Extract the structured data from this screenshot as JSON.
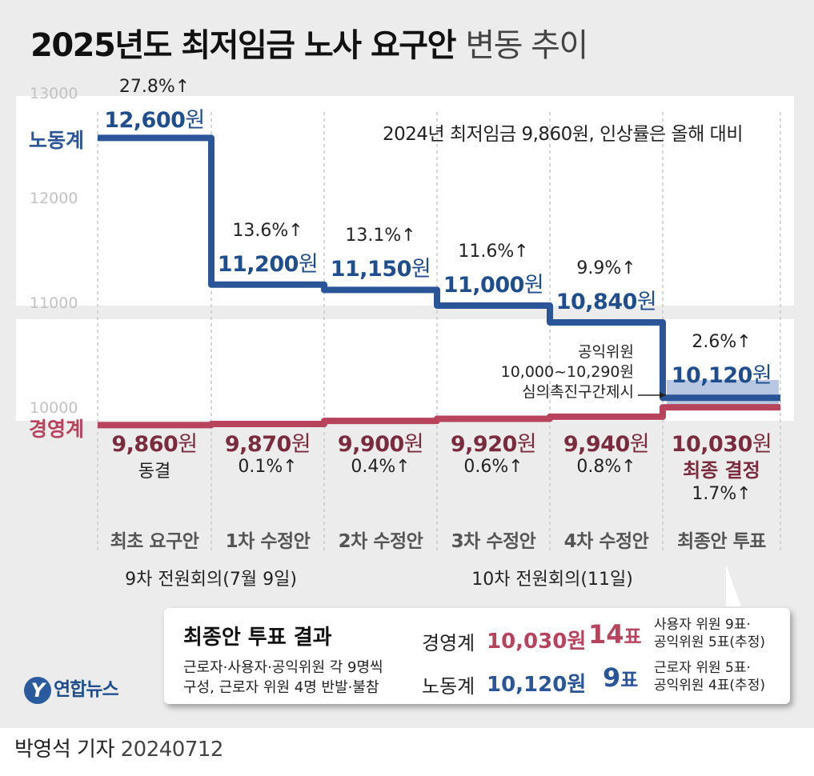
{
  "title": {
    "main": "2025년도 최저임금 노사 요구안",
    "sub": "변동 추이"
  },
  "note": "2024년 최저임금 9,860원, 인상률은 올해 대비",
  "colors": {
    "labor": "#2a5599",
    "management": "#b8435c",
    "background": "#ececec",
    "band": "#ffffff"
  },
  "chart_data": {
    "type": "line",
    "step": true,
    "title": "2025년도 최저임금 노사 요구안 변동 추이",
    "ylim": [
      10000,
      13000
    ],
    "yticks": [
      13000,
      12000,
      11000,
      10000
    ],
    "categories": [
      "최초 요구안",
      "1차 수정안",
      "2차 수정안",
      "3차 수정안",
      "4차 수정안",
      "최종안 투표"
    ],
    "series": [
      {
        "name": "노동계",
        "values": [
          12600,
          11200,
          11150,
          11000,
          10840,
          10120
        ],
        "labels": [
          "12,600",
          "11,200",
          "11,150",
          "11,000",
          "10,840",
          "10,120"
        ],
        "pct_labels": [
          "27.8%↑",
          "13.6%↑",
          "13.1%↑",
          "11.6%↑",
          "9.9%↑",
          "2.6%↑"
        ]
      },
      {
        "name": "경영계",
        "values": [
          9860,
          9870,
          9900,
          9920,
          9940,
          10030
        ],
        "labels": [
          "9,860",
          "9,870",
          "9,900",
          "9,920",
          "9,940",
          "10,030"
        ],
        "pct_labels": [
          "동결",
          "0.1%↑",
          "0.4%↑",
          "0.6%↑",
          "0.8%↑",
          "1.7%↑"
        ]
      }
    ],
    "unit": "원",
    "final_label": "최종 결정",
    "meetings": [
      {
        "label": "9차 전원회의(7월 9일)"
      },
      {
        "label": "10차 전원회의(11일)"
      }
    ],
    "annotation": {
      "lines": [
        "공익위원",
        "10,000~10,290원",
        "심의촉진구간제시"
      ],
      "range": [
        10000,
        10290
      ]
    }
  },
  "result_box": {
    "title": "최종안 투표 결과",
    "desc_1": "근로자·사용자·공익위원 각 9명씩",
    "desc_2": "구성, 근로자 위원 4명 반발·불참",
    "rows": [
      {
        "name": "경영계",
        "value": "10,030원",
        "votes": "14",
        "votes_unit": "표",
        "note_1": "사용자 위원 9표·",
        "note_2": "공익위원 5표(추정)"
      },
      {
        "name": "노동계",
        "value": "10,120원",
        "votes": "9",
        "votes_unit": "표",
        "note_1": "근로자 위원 5표·",
        "note_2": "공익위원 4표(추정)"
      }
    ]
  },
  "logo": {
    "mark": "Y",
    "text": "연합뉴스"
  },
  "byline": {
    "reporter": "박영석 기자",
    "date": "20240712"
  }
}
